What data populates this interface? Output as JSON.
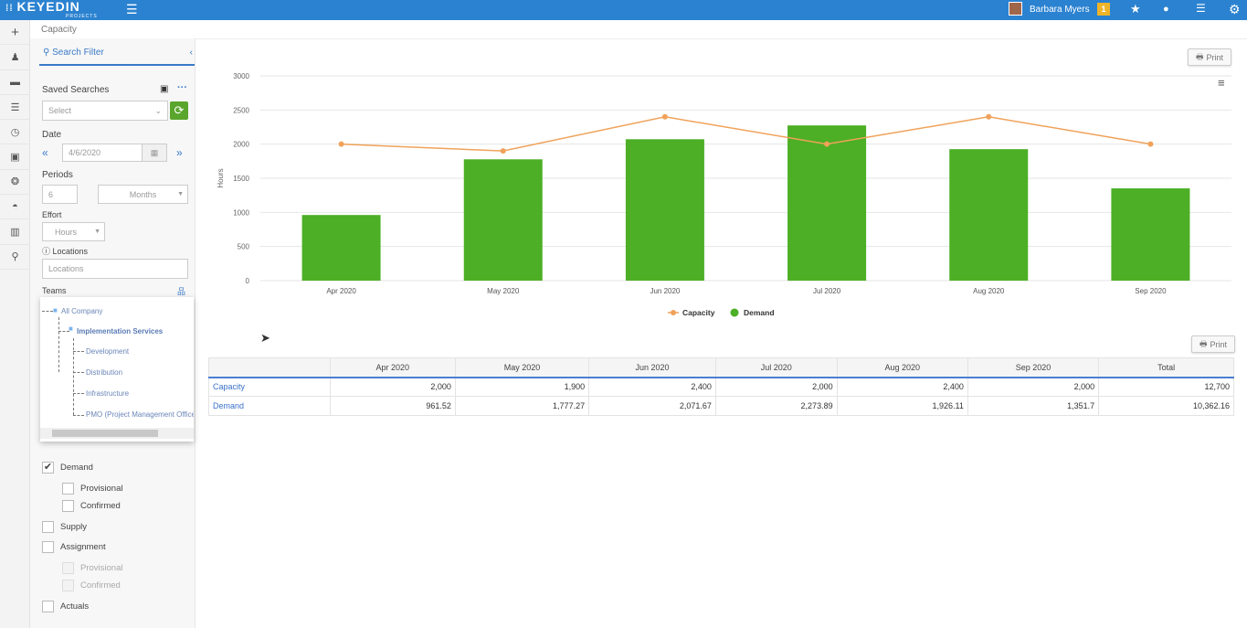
{
  "header": {
    "logo": "KEYEDIN",
    "logo_sub": "PROJECTS",
    "user": "Barbara Myers",
    "notifications": "1"
  },
  "breadcrumb": "Capacity",
  "rail": [
    "plus-icon",
    "person-icon",
    "briefcase-icon",
    "sliders-icon",
    "clock-icon",
    "money-icon",
    "coins-icon",
    "dashboard-icon",
    "bar-chart-icon",
    "search-icon"
  ],
  "filter": {
    "title": "Search Filter",
    "saved_searches": "Saved Searches",
    "select_placeholder": "Select",
    "date_label": "Date",
    "date": "4/6/2020",
    "periods_label": "Periods",
    "periods": "6",
    "period_unit": "Months",
    "effort_label": "Effort",
    "effort": "Hours",
    "locations_label": "Locations",
    "locations_placeholder": "Locations",
    "teams_label": "Teams",
    "tree": {
      "root": "All Company",
      "group": "Implementation Services",
      "children": [
        "Development",
        "Distribution",
        "Infrastructure",
        "PMO (Project Management Office)"
      ]
    },
    "checks": [
      {
        "label": "Demand",
        "checked": true
      },
      {
        "label": "Provisional",
        "checked": false
      },
      {
        "label": "Confirmed",
        "checked": false
      },
      {
        "label": "Supply",
        "checked": false
      },
      {
        "label": "Assignment",
        "checked": false
      },
      {
        "label": "Provisional",
        "checked": false
      },
      {
        "label": "Confirmed",
        "checked": false
      },
      {
        "label": "Actuals",
        "checked": false
      }
    ]
  },
  "print_label": "Print",
  "chart_data": {
    "type": "bar+line",
    "categories": [
      "Apr 2020",
      "May 2020",
      "Jun 2020",
      "Jul 2020",
      "Aug 2020",
      "Sep 2020"
    ],
    "ylabel": "Hours",
    "ylim": [
      0,
      3000
    ],
    "yticks": [
      "0",
      "500",
      "1000",
      "1500",
      "2000",
      "2500",
      "3000"
    ],
    "grid": true,
    "legend": "bottom",
    "series": [
      {
        "name": "Capacity",
        "type": "line",
        "color": "#f0a25a",
        "values": [
          2000,
          1900,
          2400,
          2000,
          2400,
          2000
        ]
      },
      {
        "name": "Demand",
        "type": "bar",
        "color": "#4caf25",
        "values": [
          961.52,
          1777.27,
          2071.67,
          2273.89,
          1926.11,
          1351.7
        ]
      }
    ]
  },
  "table": {
    "headers": [
      "",
      "Apr 2020",
      "May 2020",
      "Jun 2020",
      "Jul 2020",
      "Aug 2020",
      "Sep 2020",
      "Total"
    ],
    "rows": [
      [
        "Capacity",
        "2,000",
        "1,900",
        "2,400",
        "2,000",
        "2,400",
        "2,000",
        "12,700"
      ],
      [
        "Demand",
        "961.52",
        "1,777.27",
        "2,071.67",
        "2,273.89",
        "1,926.11",
        "1,351.7",
        "10,362.16"
      ]
    ]
  }
}
